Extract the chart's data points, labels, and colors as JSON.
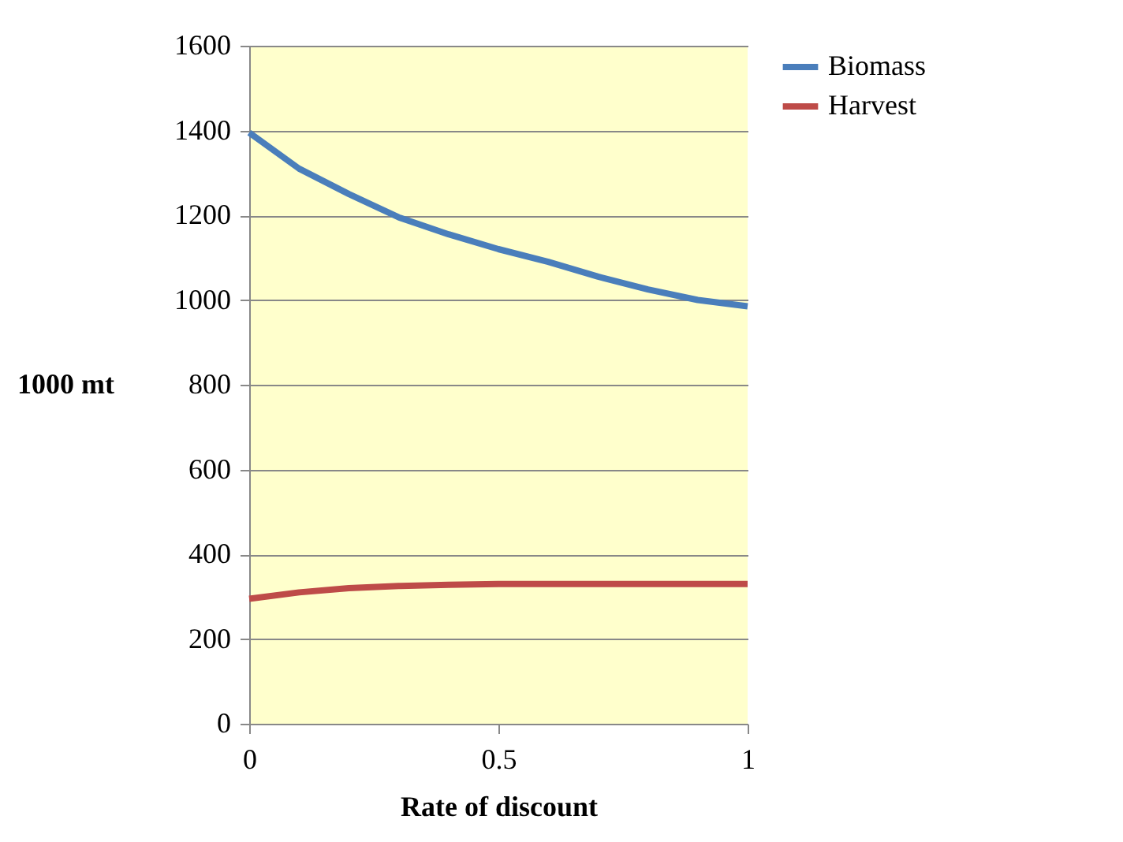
{
  "chart_data": {
    "type": "line",
    "xlabel": "Rate of discount",
    "ylabel": "1000 mt",
    "x": [
      0,
      0.1,
      0.2,
      0.3,
      0.4,
      0.5,
      0.6,
      0.7,
      0.8,
      0.9,
      1.0
    ],
    "series": [
      {
        "name": "Biomass",
        "color": "#4a7ebb",
        "values": [
          1395,
          1310,
          1250,
          1195,
          1155,
          1120,
          1090,
          1055,
          1025,
          1000,
          985
        ]
      },
      {
        "name": "Harvest",
        "color": "#be4b48",
        "values": [
          295,
          310,
          320,
          325,
          328,
          330,
          330,
          330,
          330,
          330,
          330
        ]
      }
    ],
    "xlim": [
      0,
      1
    ],
    "xticks": [
      0,
      0.5,
      1
    ],
    "ylim": [
      0,
      1600
    ],
    "yticks": [
      0,
      200,
      400,
      600,
      800,
      1000,
      1200,
      1400,
      1600
    ],
    "grid": "y",
    "legend": "right",
    "marker": "none",
    "line_style": "solid"
  }
}
